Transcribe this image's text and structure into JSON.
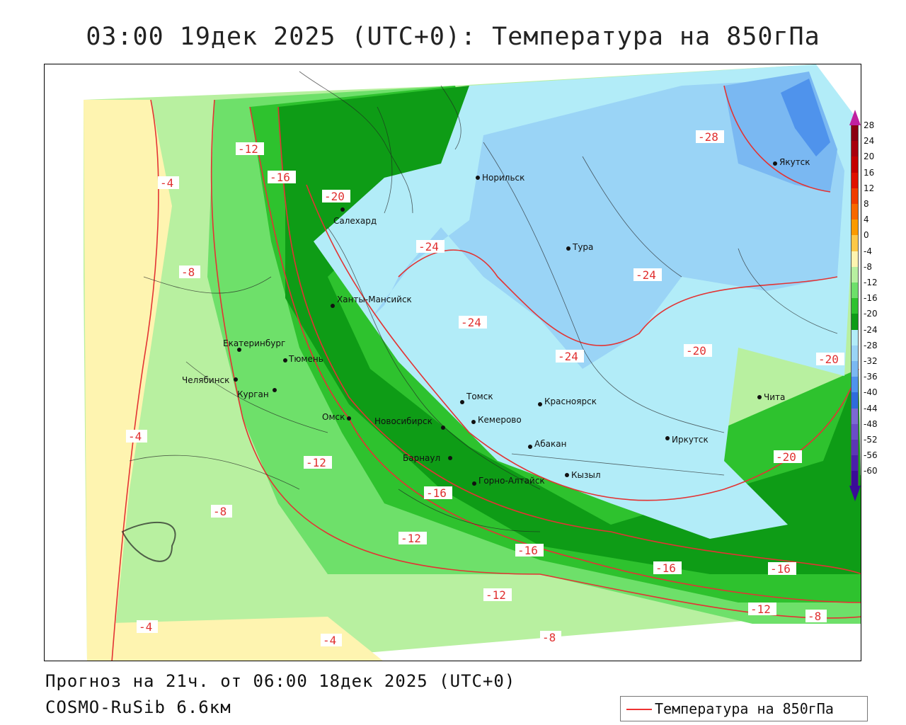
{
  "title": "03:00 19дек 2025 (UTC+0): Температура на 850гПа",
  "footer": {
    "forecast": "Прогноз на 21ч. от 06:00 18дек 2025 (UTC+0)",
    "model": "COSMO-RuSib 6.6км"
  },
  "legend": {
    "label": "Температура на 850гПа",
    "color": "#e33333"
  },
  "colorbar": {
    "labels": [
      "28",
      "24",
      "20",
      "16",
      "12",
      "8",
      "4",
      "0",
      "-4",
      "-8",
      "-12",
      "-16",
      "-20",
      "-24",
      "-28",
      "-32",
      "-36",
      "-40",
      "-44",
      "-48",
      "-52",
      "-56",
      "-60"
    ],
    "colors": [
      "#8b0010",
      "#a8000c",
      "#c40000",
      "#e01000",
      "#f03c00",
      "#f86800",
      "#fa9a00",
      "#fcc848",
      "#fef4b0",
      "#b8f0a0",
      "#6ee06a",
      "#2ec22e",
      "#0e9c16",
      "#b2ecf8",
      "#9ad4f6",
      "#7ab8f2",
      "#4f93ec",
      "#2e6cdc",
      "#7b68d4",
      "#6a4cc8",
      "#5c36b6",
      "#4a1eaa",
      "#3a0c98"
    ],
    "arrow_color": "#c020a0"
  },
  "cities": [
    {
      "name": "Норильск"
    },
    {
      "name": "Салехард"
    },
    {
      "name": "Тура"
    },
    {
      "name": "Якутск"
    },
    {
      "name": "Ханты-Мансийск"
    },
    {
      "name": "Екатеринбург"
    },
    {
      "name": "Тюмень"
    },
    {
      "name": "Челябинск"
    },
    {
      "name": "Курган"
    },
    {
      "name": "Омск"
    },
    {
      "name": "Новосибирск"
    },
    {
      "name": "Томск"
    },
    {
      "name": "Кемерово"
    },
    {
      "name": "Красноярск"
    },
    {
      "name": "Барнаул"
    },
    {
      "name": "Абакан"
    },
    {
      "name": "Горно-Алтайск"
    },
    {
      "name": "Кызыл"
    },
    {
      "name": "Иркутск"
    },
    {
      "name": "Чита"
    }
  ],
  "contour_labels": [
    "-4",
    "-8",
    "-12",
    "-16",
    "-20",
    "-24",
    "-28"
  ]
}
